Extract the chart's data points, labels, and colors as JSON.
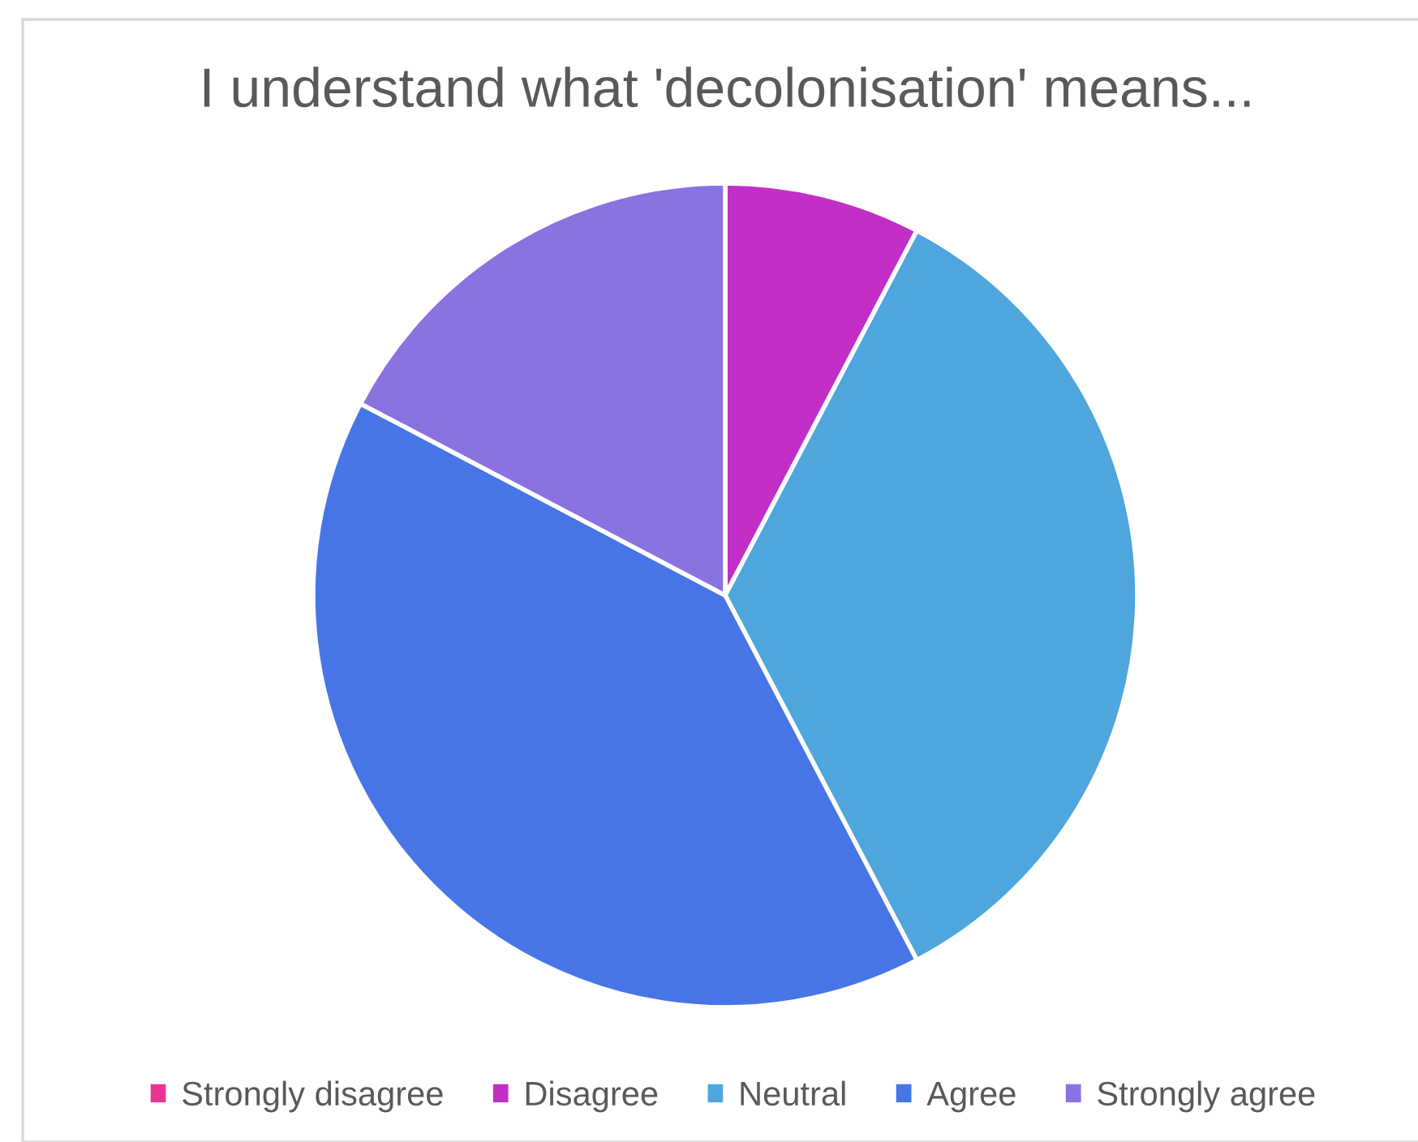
{
  "chart_data": {
    "type": "pie",
    "title": "I understand what 'decolonisation' means...",
    "categories": [
      "Strongly disagree",
      "Disagree",
      "Neutral",
      "Agree",
      "Strongly agree"
    ],
    "values": [
      0,
      7.7,
      34.6,
      40.4,
      17.3
    ],
    "colors": [
      "#e8368f",
      "#c32fc6",
      "#4ea6dc",
      "#4775e6",
      "#8a72e0"
    ],
    "legend": "bottom"
  }
}
